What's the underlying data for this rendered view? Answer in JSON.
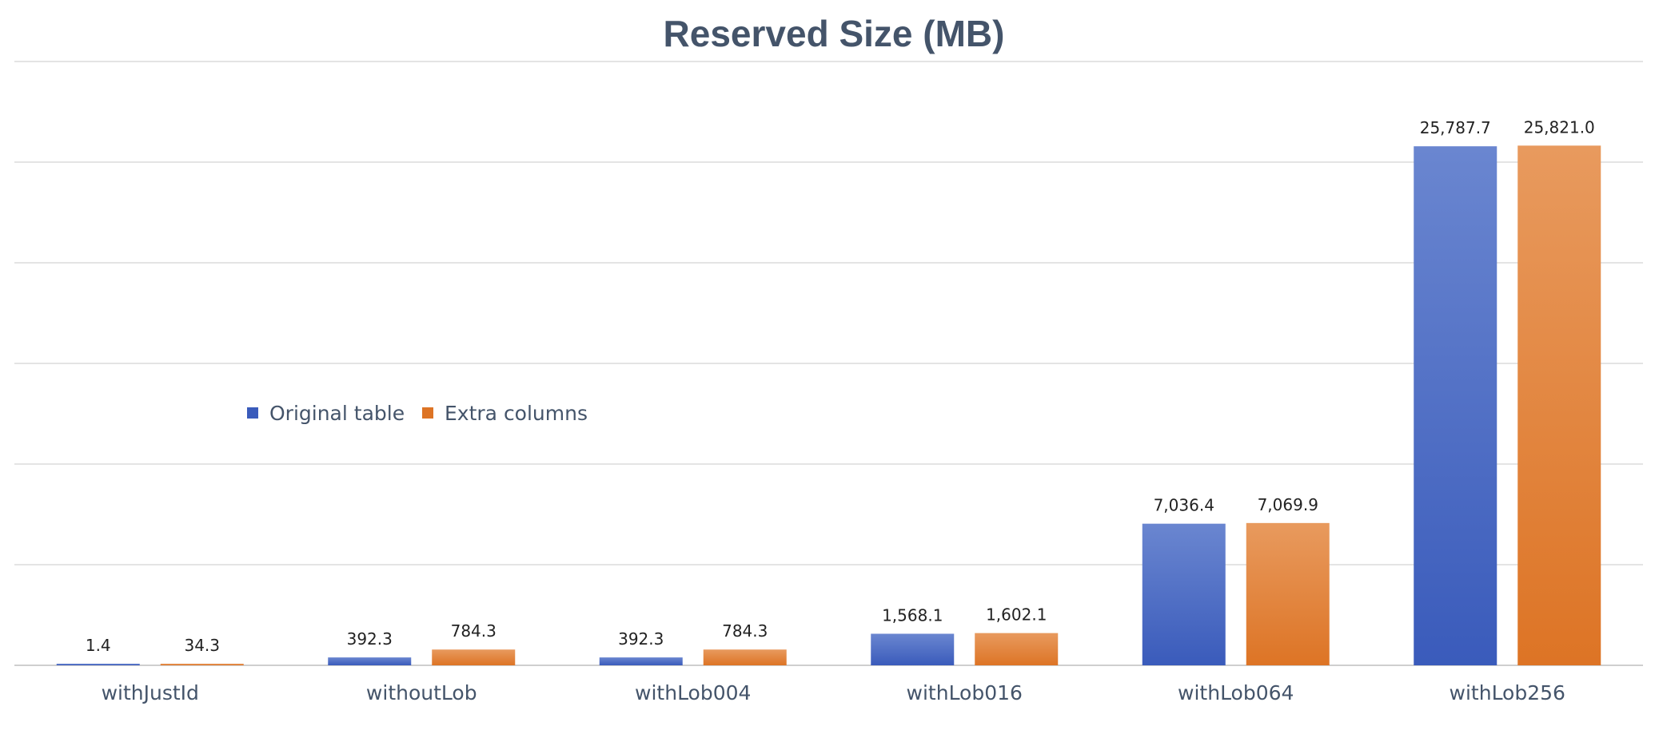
{
  "chart_data": {
    "type": "bar",
    "title": "Reserved Size (MB)",
    "categories": [
      "withJustId",
      "withoutLob",
      "withLob004",
      "withLob016",
      "withLob064",
      "withLob256"
    ],
    "series": [
      {
        "name": "Original table",
        "values": [
          1.4,
          392.3,
          392.3,
          1568.1,
          7036.4,
          25787.7
        ],
        "labels": [
          "1.4",
          "392.3",
          "392.3",
          "1,568.1",
          "7,036.4",
          "25,787.7"
        ],
        "color_top": "#6a86d0",
        "color_bottom": "#3a5bbb"
      },
      {
        "name": "Extra columns",
        "values": [
          34.3,
          784.3,
          784.3,
          1602.1,
          7069.9,
          25821.0
        ],
        "labels": [
          "34.3",
          "784.3",
          "784.3",
          "1,602.1",
          "7,069.9",
          "25,821.0"
        ],
        "color_top": "#e89a5e",
        "color_bottom": "#dd7425"
      }
    ],
    "ylim": [
      0,
      30000
    ],
    "grid": true,
    "legend_position": "left-middle",
    "xlabel": "",
    "ylabel": ""
  }
}
